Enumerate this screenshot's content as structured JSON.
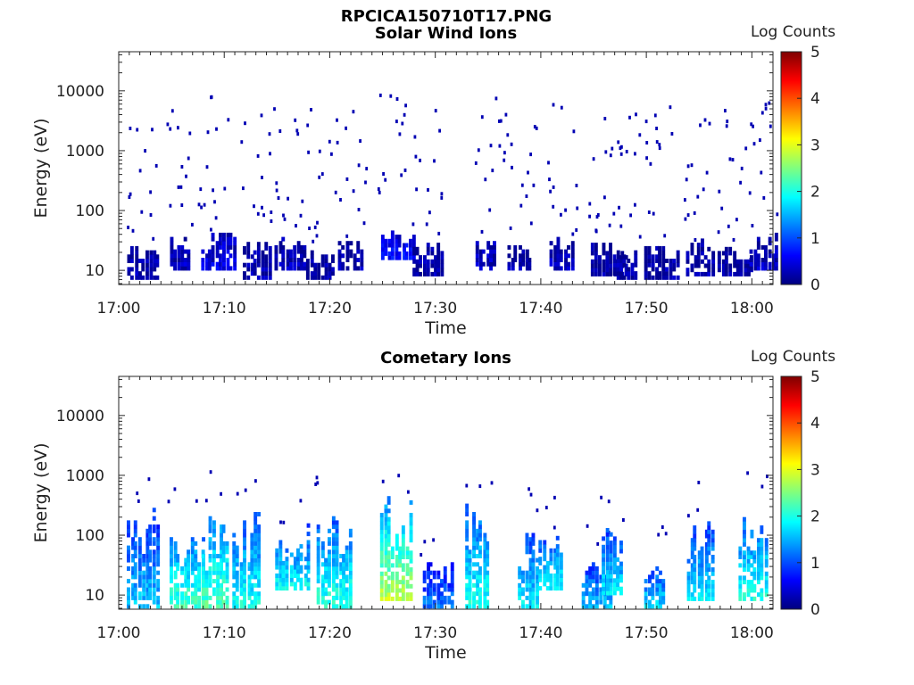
{
  "figure_title": "RPCICA150710T17.PNG",
  "colorscale": [
    "#00007f",
    "#0000ff",
    "#007fff",
    "#00ffff",
    "#7fff7f",
    "#ffff00",
    "#ff7f00",
    "#ff0000",
    "#7f0000"
  ],
  "chart_data": [
    {
      "type": "heatmap",
      "title": "Solar Wind Ions",
      "xlabel": "Time",
      "ylabel": "Energy (eV)",
      "x_range": [
        "17:00",
        "18:02"
      ],
      "x_ticks": [
        "17:00",
        "17:10",
        "17:20",
        "17:30",
        "17:40",
        "17:50",
        "18:00"
      ],
      "y_scale": "log",
      "y_range": [
        5.8,
        45000
      ],
      "y_ticks": [
        "10",
        "100",
        "1000",
        "10000"
      ],
      "colorbar": {
        "label": "Log Counts",
        "range": [
          0,
          5
        ],
        "ticks": [
          "0",
          "1",
          "2",
          "3",
          "4",
          "5"
        ]
      },
      "bursts": [
        {
          "time": "17:02",
          "emin": 7,
          "emax": 30,
          "level": 0.2
        },
        {
          "time": "17:06",
          "emin": 10,
          "emax": 35,
          "level": 0.3
        },
        {
          "time": "17:09",
          "emin": 10,
          "emax": 40,
          "level": 0.5
        },
        {
          "time": "17:13",
          "emin": 7,
          "emax": 30,
          "level": 0.25
        },
        {
          "time": "17:16",
          "emin": 10,
          "emax": 35,
          "level": 0.3
        },
        {
          "time": "17:19",
          "emin": 7,
          "emax": 25,
          "level": 0.2
        },
        {
          "time": "17:22",
          "emin": 10,
          "emax": 30,
          "level": 0.3
        },
        {
          "time": "17:26",
          "emin": 15,
          "emax": 45,
          "level": 0.7
        },
        {
          "time": "17:29",
          "emin": 8,
          "emax": 30,
          "level": 0.2
        },
        {
          "time": "17:35",
          "emin": 10,
          "emax": 40,
          "level": 0.3
        },
        {
          "time": "17:38",
          "emin": 10,
          "emax": 30,
          "level": 0.2
        },
        {
          "time": "17:42",
          "emin": 10,
          "emax": 35,
          "level": 0.3
        },
        {
          "time": "17:46",
          "emin": 8,
          "emax": 30,
          "level": 0.2
        },
        {
          "time": "17:48",
          "emin": 7,
          "emax": 25,
          "level": 0.2
        },
        {
          "time": "17:51",
          "emin": 7,
          "emax": 25,
          "level": 0.2
        },
        {
          "time": "17:55",
          "emin": 8,
          "emax": 30,
          "level": 0.2
        },
        {
          "time": "17:58",
          "emin": 8,
          "emax": 25,
          "level": 0.2
        },
        {
          "time": "18:01",
          "emin": 10,
          "emax": 40,
          "level": 0.3
        }
      ]
    },
    {
      "type": "heatmap",
      "title": "Cometary Ions",
      "xlabel": "Time",
      "ylabel": "Energy (eV)",
      "x_range": [
        "17:00",
        "18:02"
      ],
      "x_ticks": [
        "17:00",
        "17:10",
        "17:20",
        "17:30",
        "17:40",
        "17:50",
        "18:00"
      ],
      "y_scale": "log",
      "y_range": [
        5.8,
        45000
      ],
      "y_ticks": [
        "10",
        "100",
        "1000",
        "10000"
      ],
      "colorbar": {
        "label": "Log Counts",
        "range": [
          0,
          5
        ],
        "ticks": [
          "0",
          "1",
          "2",
          "3",
          "4",
          "5"
        ]
      },
      "bursts": [
        {
          "time": "17:02",
          "emin": 6,
          "emax": 300,
          "level": 1.6
        },
        {
          "time": "17:06",
          "emin": 6,
          "emax": 150,
          "level": 2.2
        },
        {
          "time": "17:09",
          "emin": 6,
          "emax": 280,
          "level": 2.3
        },
        {
          "time": "17:12",
          "emin": 6,
          "emax": 250,
          "level": 2.0
        },
        {
          "time": "17:16",
          "emin": 12,
          "emax": 150,
          "level": 1.9
        },
        {
          "time": "17:20",
          "emin": 6,
          "emax": 250,
          "level": 2.1
        },
        {
          "time": "17:26",
          "emin": 8,
          "emax": 400,
          "level": 2.8
        },
        {
          "time": "17:30",
          "emin": 6,
          "emax": 40,
          "level": 1.2
        },
        {
          "time": "17:34",
          "emin": 6,
          "emax": 450,
          "level": 2.0
        },
        {
          "time": "17:39",
          "emin": 6,
          "emax": 150,
          "level": 1.8
        },
        {
          "time": "17:41",
          "emin": 12,
          "emax": 100,
          "level": 1.9
        },
        {
          "time": "17:45",
          "emin": 6,
          "emax": 35,
          "level": 1.6
        },
        {
          "time": "17:47",
          "emin": 10,
          "emax": 150,
          "level": 1.8
        },
        {
          "time": "17:51",
          "emin": 6,
          "emax": 35,
          "level": 1.7
        },
        {
          "time": "17:55",
          "emin": 8,
          "emax": 180,
          "level": 1.8
        },
        {
          "time": "18:00",
          "emin": 8,
          "emax": 300,
          "level": 2.0
        }
      ]
    }
  ]
}
